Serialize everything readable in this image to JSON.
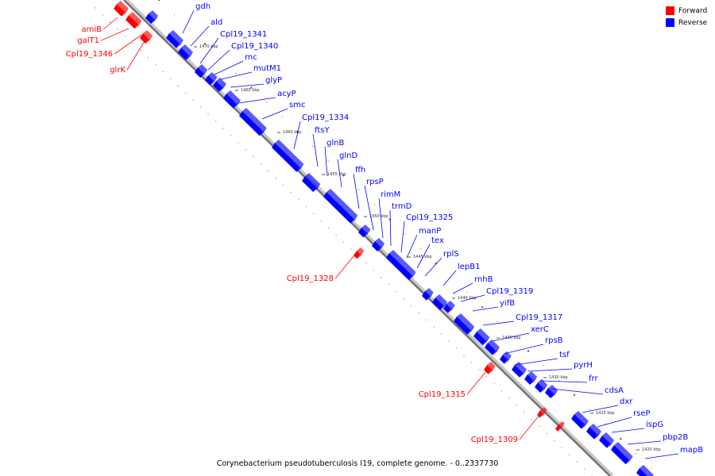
{
  "caption": "Corynebacterium pseudotuberculosis I19, complete genome. - 0..2337730",
  "legend": {
    "forward_label": "Forward",
    "reverse_label": "Reverse",
    "forward_color": "#ff0000",
    "reverse_color": "#0000ff"
  },
  "axis_ticks": [
    "1470 kbp",
    "1465 kbp",
    "1460 kbp",
    "1455 kbp",
    "1450 kbp",
    "1445 kbp",
    "1440 kbp",
    "1435 kbp",
    "1430 kbp",
    "1425 kbp",
    "1420 kbp"
  ],
  "reverse_genes": [
    "gdh",
    "ald",
    "Cpl19_1341",
    "Cpl19_1340",
    "rnc",
    "mutM1",
    "glyP",
    "acyP",
    "smc",
    "Cpl19_1334",
    "ftsY",
    "glnB",
    "glnD",
    "ffh",
    "rpsP",
    "rimM",
    "trmD",
    "Cpl19_1325",
    "manP",
    "tex",
    "rplS",
    "lepB1",
    "rnhB",
    "Cpl19_1319",
    "yifB",
    "Cpl19_1317",
    "xerC",
    "rpsB",
    "tsf",
    "pyrH",
    "frr",
    "cdsA",
    "dxr",
    "rseP",
    "ispG",
    "pbp2B",
    "mapB"
  ],
  "forward_genes": [
    "amiB",
    "galT1",
    "Cpl19_1346",
    "glrK",
    "Cpl19_1328",
    "Cpl19_1315",
    "Cpl19_1309"
  ]
}
